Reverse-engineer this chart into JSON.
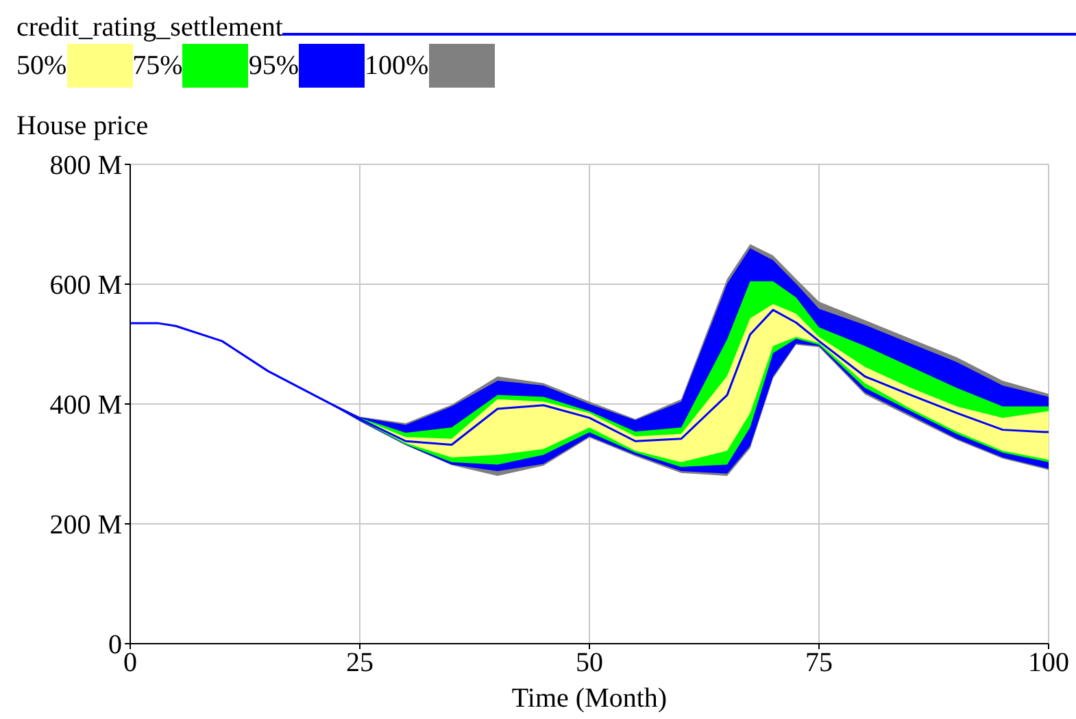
{
  "chart_data": {
    "type": "line",
    "xlabel": "Time (Month)",
    "ylabel": "House price",
    "legend": "top left",
    "grid": true,
    "x": [
      0,
      3,
      5,
      10,
      15,
      20,
      25,
      30,
      35,
      40,
      45,
      50,
      55,
      60,
      65,
      67.5,
      70,
      72.5,
      75,
      80,
      85,
      90,
      95,
      100
    ],
    "xlim": [
      0,
      100
    ],
    "xticks": [
      0,
      25,
      50,
      75,
      100
    ],
    "ylim": [
      0,
      800
    ],
    "yticks": [
      0,
      {
        "value": 200,
        "label": "200 M"
      },
      {
        "value": 400,
        "label": "400 M"
      },
      {
        "value": 600,
        "label": "600 M"
      },
      {
        "value": 800,
        "label": "800 M"
      }
    ],
    "series": [
      {
        "name": "credit_rating_settlement",
        "type": "line",
        "color": "#0000ff",
        "values": [
          535,
          535,
          530,
          505,
          455,
          415,
          375,
          338,
          332,
          392,
          398,
          377,
          338,
          342,
          415,
          516,
          557,
          536,
          505,
          446,
          415,
          385,
          357,
          353
        ]
      },
      {
        "name": "50%",
        "type": "area",
        "color": "#ffff80",
        "values": [
          null,
          null,
          null,
          null,
          null,
          null,
          null,
          null,
          null,
          null,
          null,
          null,
          null,
          null,
          null,
          null,
          null,
          null,
          null,
          null,
          null,
          null,
          null,
          null
        ],
        "lower": [
          535,
          535,
          530,
          505,
          455,
          415,
          374,
          335,
          311,
          315,
          325,
          361,
          322,
          303,
          322,
          385,
          497,
          512,
          502,
          435,
          392,
          354,
          322,
          307
        ],
        "upper": [
          535,
          535,
          530,
          505,
          455,
          415,
          376,
          345,
          342,
          408,
          404,
          385,
          346,
          350,
          447,
          543,
          567,
          551,
          512,
          462,
          427,
          396,
          377,
          388
        ]
      },
      {
        "name": "75%",
        "type": "area",
        "color": "#00ff00",
        "values": [
          null,
          null,
          null,
          null,
          null,
          null,
          null,
          null,
          null,
          null,
          null,
          null,
          null,
          null,
          null,
          null,
          null,
          null,
          null,
          null,
          null,
          null,
          null,
          null
        ],
        "lower": [
          535,
          535,
          530,
          505,
          455,
          415,
          373,
          333,
          303,
          299,
          315,
          353,
          319,
          295,
          299,
          361,
          485,
          509,
          499,
          427,
          388,
          350,
          319,
          303
        ],
        "upper": [
          535,
          535,
          530,
          505,
          455,
          415,
          377,
          352,
          361,
          415,
          412,
          388,
          354,
          361,
          508,
          605,
          605,
          578,
          528,
          497,
          462,
          427,
          396,
          396
        ]
      },
      {
        "name": "95%",
        "type": "area",
        "color": "#0000ff",
        "values": [
          null,
          null,
          null,
          null,
          null,
          null,
          null,
          null,
          null,
          null,
          null,
          null,
          null,
          null,
          null,
          null,
          null,
          null,
          null,
          null,
          null,
          null,
          null,
          null
        ],
        "lower": [
          535,
          535,
          530,
          505,
          455,
          415,
          372,
          332,
          299,
          288,
          300,
          346,
          315,
          288,
          284,
          330,
          446,
          501,
          497,
          419,
          381,
          342,
          311,
          292
        ],
        "upper": [
          535,
          535,
          530,
          505,
          455,
          415,
          378,
          365,
          396,
          439,
          431,
          400,
          373,
          404,
          601,
          660,
          640,
          601,
          559,
          532,
          501,
          470,
          431,
          412
        ]
      },
      {
        "name": "100%",
        "type": "area",
        "color": "#808080",
        "values": [
          null,
          null,
          null,
          null,
          null,
          null,
          null,
          null,
          null,
          null,
          null,
          null,
          null,
          null,
          null,
          null,
          null,
          null,
          null,
          null,
          null,
          null,
          null,
          null
        ],
        "lower": [
          535,
          535,
          530,
          505,
          455,
          415,
          371,
          331,
          298,
          280,
          297,
          344,
          313,
          285,
          280,
          326,
          443,
          499,
          495,
          416,
          378,
          340,
          309,
          290
        ],
        "upper": [
          535,
          535,
          530,
          505,
          455,
          415,
          379,
          368,
          399,
          446,
          435,
          404,
          375,
          408,
          609,
          667,
          648,
          609,
          571,
          540,
          509,
          478,
          439,
          417
        ]
      }
    ]
  }
}
